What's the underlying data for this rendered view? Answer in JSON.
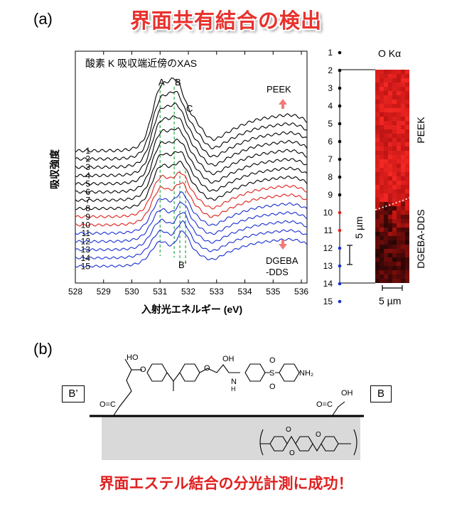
{
  "page_title": "界面共有結合の検出",
  "panel_a_label": "(a)",
  "panel_b_label": "(b)",
  "footer_text": "界面エステル結合の分光計測に成功！",
  "chart_data": [
    {
      "type": "line",
      "title": "酸素 K 吸収端近傍のXAS",
      "xlabel": "入射光エネルギー (eV)",
      "ylabel": "吸収強度",
      "xlim": [
        528,
        536.2
      ],
      "x_ticks": [
        "528",
        "529",
        "530",
        "531",
        "532",
        "533",
        "534",
        "535",
        "536"
      ],
      "series_labels": [
        "1",
        "2",
        "3",
        "4",
        "5",
        "6",
        "7",
        "8",
        "9",
        "10",
        "11",
        "12",
        "13",
        "14",
        "15"
      ],
      "series_colors": [
        "#000000",
        "#000000",
        "#000000",
        "#000000",
        "#000000",
        "#000000",
        "#000000",
        "#000000",
        "#e0201b",
        "#e0201b",
        "#1a2fcf",
        "#1a2fcf",
        "#1a2fcf",
        "#1a2fcf",
        "#1a2fcf"
      ],
      "peak_labels": {
        "A": "A",
        "B": "B",
        "C": "C",
        "Bprime": "B’"
      },
      "peak_positions_eV": {
        "A": 531.0,
        "B": 531.5,
        "Bprime_1": 531.7,
        "Bprime_2": 531.9
      },
      "annotations": {
        "top": "PEEK",
        "bottom": "DGEBA\n-DDS"
      },
      "grid": false
    },
    {
      "type": "heatmap",
      "title": "O Kα",
      "row_labels": [
        "1",
        "2",
        "3",
        "4",
        "5",
        "6",
        "7",
        "8",
        "9",
        "10",
        "11",
        "12",
        "13",
        "14",
        "15"
      ],
      "row_colors": [
        "#000000",
        "#000000",
        "#000000",
        "#000000",
        "#000000",
        "#000000",
        "#000000",
        "#000000",
        "#000000",
        "#e0201b",
        "#e0201b",
        "#1a2fcf",
        "#1a2fcf",
        "#1a2fcf",
        "#1a2fcf"
      ],
      "region_labels": [
        "PEEK",
        "DGEBA-DDS"
      ],
      "scale_bar_vertical": "5 µm",
      "scale_bar_horizontal": "5 µm"
    }
  ],
  "diagram_b": {
    "left_box": "B’",
    "right_box": "B",
    "atoms": {
      "HO": "HO",
      "OH": "OH",
      "OH2": "OH",
      "O": "O",
      "N": "N",
      "H": "H",
      "S": "S",
      "NH2": "NH₂",
      "OC1": "O=C",
      "OC2": "O=C"
    }
  }
}
